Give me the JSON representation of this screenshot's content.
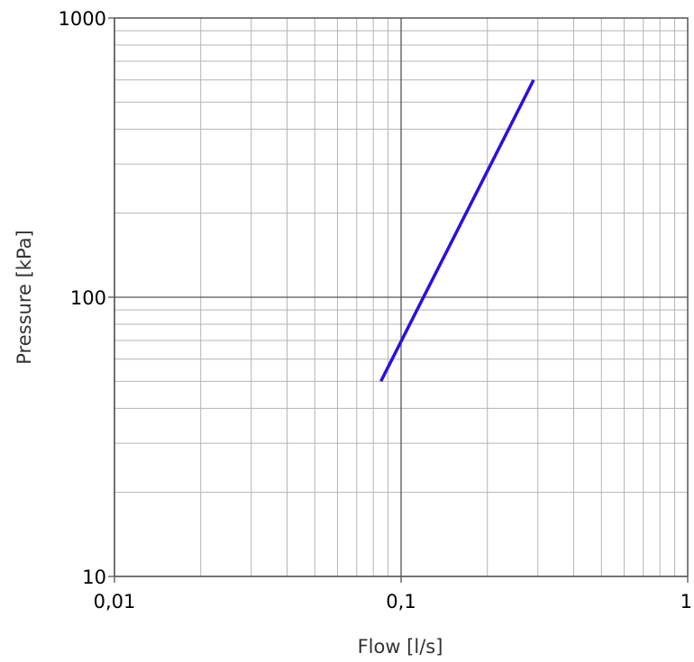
{
  "chart_data": {
    "type": "line",
    "xlabel": "Flow [l/s]",
    "ylabel": "Pressure [kPa]",
    "x_scale": "log",
    "y_scale": "log",
    "xlim": [
      0.01,
      1
    ],
    "ylim": [
      10,
      1000
    ],
    "x_ticks": [
      {
        "value": 0.01,
        "label": "0,01"
      },
      {
        "value": 0.1,
        "label": "0,1"
      },
      {
        "value": 1,
        "label": "1"
      }
    ],
    "y_ticks": [
      {
        "value": 10,
        "label": "10"
      },
      {
        "value": 100,
        "label": "100"
      },
      {
        "value": 1000,
        "label": "1000"
      }
    ],
    "grid": true,
    "series": [
      {
        "color": "#2a10dd",
        "x": [
          0.085,
          0.29
        ],
        "y": [
          50,
          600
        ]
      }
    ]
  }
}
